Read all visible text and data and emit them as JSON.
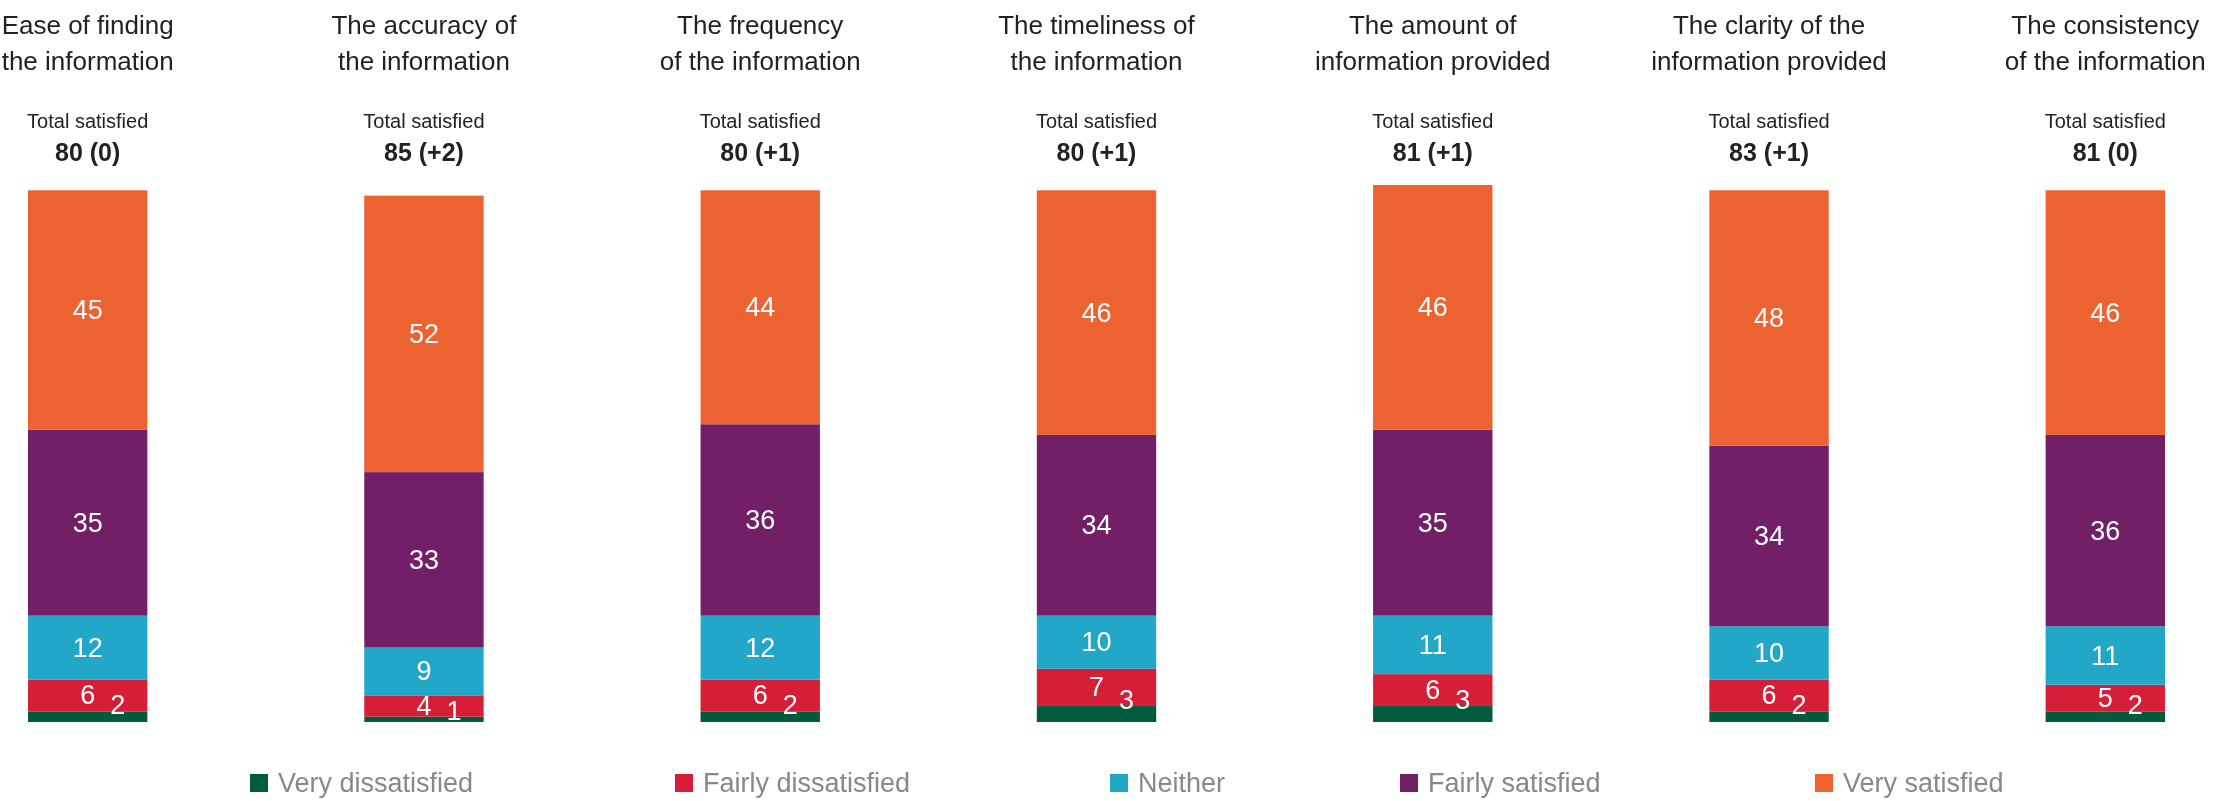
{
  "chart_data": {
    "type": "bar",
    "stacked": true,
    "data_labels": true,
    "legend": "bottom",
    "categories": [
      "Ease of finding\nthe information",
      "The accuracy of\nthe information",
      "The frequency\nof the information",
      "The timeliness of\nthe information",
      "The amount of\ninformation provided",
      "The clarity of the\ninformation provided",
      "The consistency\nof the information"
    ],
    "totals": [
      "Total satisfied\n80 (0)",
      "Total satisfied\n85 (+2)",
      "Total satisfied\n80 (+1)",
      "Total satisfied\n80 (+1)",
      "Total satisfied\n81 (+1)",
      "Total satisfied\n83 (+1)",
      "Total satisfied\n81 (0)"
    ],
    "series": [
      {
        "name": "Very dissatisfied",
        "color": "#005a3c",
        "values": [
          2,
          1,
          2,
          3,
          3,
          2,
          2
        ]
      },
      {
        "name": "Fairly dissatisfied",
        "color": "#d61f36",
        "values": [
          6,
          4,
          6,
          7,
          6,
          6,
          5
        ]
      },
      {
        "name": "Neither",
        "color": "#22a7c9",
        "values": [
          12,
          9,
          12,
          10,
          11,
          10,
          11
        ]
      },
      {
        "name": "Fairly satisfied",
        "color": "#731f68",
        "values": [
          35,
          33,
          36,
          34,
          35,
          34,
          36
        ]
      },
      {
        "name": "Very satisfied",
        "color": "#ec6231",
        "values": [
          45,
          52,
          44,
          46,
          46,
          48,
          46
        ]
      }
    ]
  }
}
